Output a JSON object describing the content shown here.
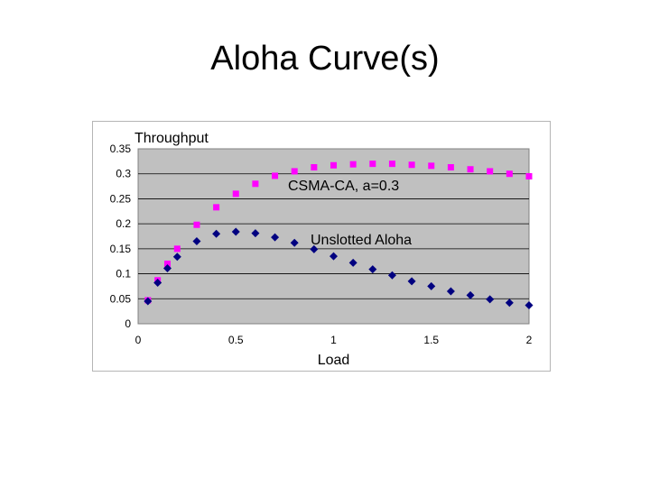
{
  "slide": {
    "title": "Aloha Curve(s)"
  },
  "chart_data": {
    "type": "scatter",
    "title": "",
    "xlabel": "Load",
    "ylabel": "Throughput",
    "xlim": [
      0,
      2
    ],
    "ylim": [
      0,
      0.35
    ],
    "x_ticks": [
      "0",
      "0.5",
      "1",
      "1.5",
      "2"
    ],
    "y_ticks": [
      "0",
      "0.05",
      "0.1",
      "0.15",
      "0.2",
      "0.25",
      "0.3",
      "0.35"
    ],
    "grid": true,
    "plot_background": "#c0c0c0",
    "annotations": [
      "CSMA-CA, a=0.3",
      "Unslotted Aloha"
    ],
    "series": [
      {
        "name": "CSMA-CA, a=0.3",
        "marker": "square",
        "color": "#ff00ff",
        "x": [
          0.05,
          0.1,
          0.15,
          0.2,
          0.3,
          0.4,
          0.5,
          0.6,
          0.7,
          0.8,
          0.9,
          1.0,
          1.1,
          1.2,
          1.3,
          1.4,
          1.5,
          1.6,
          1.7,
          1.8,
          1.9,
          2.0
        ],
        "y": [
          0.047,
          0.087,
          0.12,
          0.15,
          0.198,
          0.233,
          0.26,
          0.28,
          0.296,
          0.305,
          0.313,
          0.317,
          0.319,
          0.32,
          0.32,
          0.318,
          0.316,
          0.313,
          0.309,
          0.305,
          0.3,
          0.295
        ]
      },
      {
        "name": "Unslotted Aloha",
        "marker": "diamond",
        "color": "#000080",
        "x": [
          0.05,
          0.1,
          0.15,
          0.2,
          0.3,
          0.4,
          0.5,
          0.6,
          0.7,
          0.8,
          0.9,
          1.0,
          1.1,
          1.2,
          1.3,
          1.4,
          1.5,
          1.6,
          1.7,
          1.8,
          1.9,
          2.0
        ],
        "y": [
          0.045,
          0.082,
          0.111,
          0.134,
          0.165,
          0.18,
          0.184,
          0.181,
          0.173,
          0.162,
          0.149,
          0.135,
          0.122,
          0.109,
          0.097,
          0.085,
          0.075,
          0.065,
          0.057,
          0.049,
          0.042,
          0.037
        ]
      }
    ]
  }
}
